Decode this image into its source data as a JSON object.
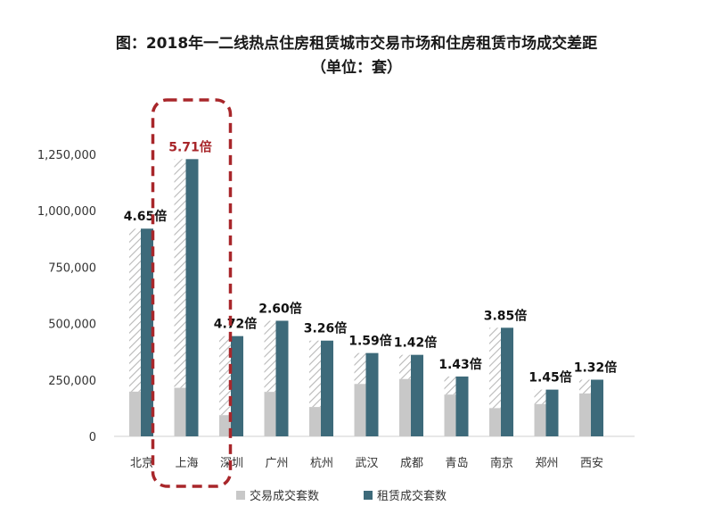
{
  "chart_data": {
    "type": "bar",
    "title": "图：2018年一二线热点住房租赁城市交易市场和住房租赁市场成交差距",
    "subtitle": "（单位：套）",
    "categories": [
      "北京",
      "上海",
      "深圳",
      "广州",
      "杭州",
      "武汉",
      "成都",
      "青岛",
      "南京",
      "郑州",
      "西安"
    ],
    "series": [
      {
        "name": "交易成交套数",
        "color": "#c8c8c8",
        "values": [
          198000,
          215000,
          94000,
          197000,
          130000,
          232000,
          254000,
          185000,
          125000,
          143000,
          190000
        ]
      },
      {
        "name": "租赁成交套数",
        "color": "#3d6a7a",
        "values": [
          920000,
          1228000,
          444000,
          512000,
          424000,
          369000,
          361000,
          265000,
          481000,
          207000,
          251000
        ]
      }
    ],
    "ratio_labels": [
      "4.65倍",
      "5.71倍",
      "4.72倍",
      "2.60倍",
      "3.26倍",
      "1.59倍",
      "1.42倍",
      "1.43倍",
      "3.85倍",
      "1.45倍",
      "1.32倍"
    ],
    "highlight_category": "上海",
    "highlight_color": "#a8262a",
    "y_ticks": [
      "0",
      "250,000",
      "500,000",
      "750,000",
      "1,000,000",
      "1,250,000"
    ],
    "ylim": [
      0,
      1300000
    ],
    "grid": false,
    "legend_position": "bottom"
  }
}
